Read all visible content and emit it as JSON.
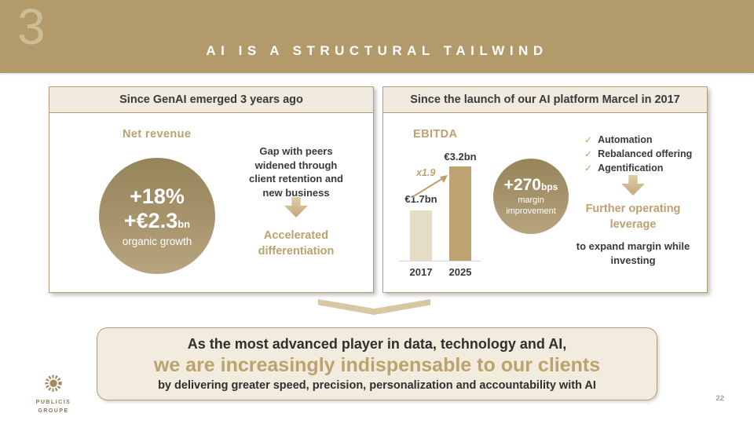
{
  "slide": {
    "section_number": "3",
    "title": "AI IS A STRUCTURAL TAILWIND",
    "page_number": "22"
  },
  "colors": {
    "brand_gold": "#b29a6b",
    "gold_text": "#bca26e",
    "cream": "#f1ebdf",
    "dark_text": "#3a3a39"
  },
  "left_panel": {
    "header": "Since GenAI emerged 3 years ago",
    "metric_label": "Net revenue",
    "circle": {
      "line1": "+18%",
      "line2": "+€2.3",
      "line2_suffix": "bn",
      "line3": "organic growth"
    },
    "side_text_lines": [
      "Gap with peers",
      "widened through",
      "client retention and",
      "new business"
    ],
    "highlight": "Accelerated differentiation"
  },
  "right_panel": {
    "header": "Since the launch of our AI platform Marcel in 2017",
    "metric_label": "EBITDA",
    "circle": {
      "line1": "+270",
      "line1_suffix": "bps",
      "line2": "margin improvement"
    },
    "checklist": [
      "Automation",
      "Rebalanced offering",
      "Agentification"
    ],
    "highlight": "Further operating leverage",
    "highlight_sub": "to expand margin while investing"
  },
  "chart_data": {
    "type": "bar",
    "title": "EBITDA",
    "categories": [
      "2017",
      "2025"
    ],
    "values": [
      1.7,
      3.2
    ],
    "value_labels": [
      "€1.7bn",
      "€3.2bn"
    ],
    "annotation": "x1.9",
    "ylabel": "",
    "xlabel": "",
    "ylim": [
      0,
      3.2
    ],
    "grid": false,
    "legend": false,
    "bar_colors": [
      "#e5dcc6",
      "#bfa271"
    ]
  },
  "bottom_box": {
    "line1": "As the most advanced player in data, technology and AI,",
    "line2": "we are increasingly indispensable to our clients",
    "line3": "by delivering greater speed, precision, personalization and accountability with AI"
  },
  "footer": {
    "logo_line1": "PUBLICIS",
    "logo_line2": "GROUPE"
  }
}
